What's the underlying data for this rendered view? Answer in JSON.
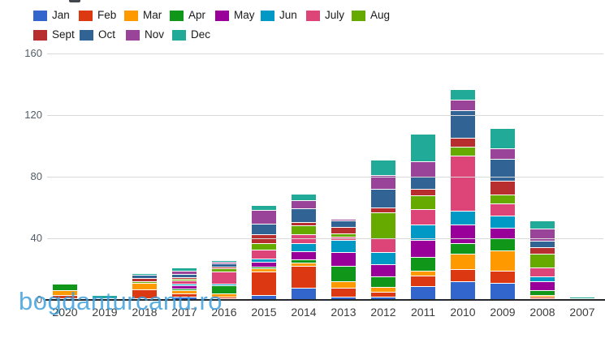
{
  "watermark": {
    "text": "bogdanturcanu.ro",
    "color": "#3fa0de"
  },
  "chart_data": {
    "type": "bar",
    "stacked": true,
    "title": "",
    "xlabel": "",
    "ylabel": "",
    "categories": [
      "2020",
      "2019",
      "2018",
      "2017",
      "2016",
      "2015",
      "2014",
      "2013",
      "2012",
      "2011",
      "2010",
      "2009",
      "2008",
      "2007"
    ],
    "series": [
      {
        "name": "Jan",
        "color": "#3366cc",
        "values": [
          1,
          0,
          1,
          2,
          1,
          3,
          8,
          2,
          2,
          9,
          12,
          11,
          1,
          0
        ]
      },
      {
        "name": "Feb",
        "color": "#dc3912",
        "values": [
          2,
          0,
          6,
          2,
          1,
          15,
          14,
          6,
          3,
          7,
          8,
          8,
          1,
          0
        ]
      },
      {
        "name": "Mar",
        "color": "#ff9900",
        "values": [
          3,
          0,
          4,
          2,
          2,
          2,
          2,
          4,
          3,
          3,
          10,
          13,
          1,
          0
        ]
      },
      {
        "name": "Apr",
        "color": "#109618",
        "values": [
          4,
          0,
          0,
          1,
          5,
          1,
          2,
          10,
          7,
          9,
          7,
          8,
          3,
          0
        ]
      },
      {
        "name": "May",
        "color": "#990099",
        "values": [
          0,
          0,
          0,
          2,
          0,
          3,
          5,
          9,
          8,
          11,
          12,
          7,
          6,
          0
        ]
      },
      {
        "name": "Jun",
        "color": "#0099c6",
        "values": [
          0,
          0,
          0,
          1,
          1,
          2,
          5,
          8,
          8,
          10,
          9,
          8,
          3,
          0
        ]
      },
      {
        "name": "July",
        "color": "#dd4477",
        "values": [
          0,
          1,
          0,
          2,
          8,
          6,
          6,
          2,
          9,
          10,
          36,
          8,
          6,
          0
        ]
      },
      {
        "name": "Aug",
        "color": "#66aa00",
        "values": [
          0,
          0,
          1,
          1,
          2,
          4,
          6,
          2,
          17,
          9,
          6,
          6,
          9,
          0
        ]
      },
      {
        "name": "Sept",
        "color": "#b82e2e",
        "values": [
          0,
          0,
          2,
          1,
          1,
          6,
          2,
          4,
          3,
          4,
          6,
          9,
          4,
          0
        ]
      },
      {
        "name": "Oct",
        "color": "#316395",
        "values": [
          0,
          0,
          2,
          2,
          2,
          7,
          9,
          4,
          12,
          8,
          18,
          14,
          4,
          0
        ]
      },
      {
        "name": "Nov",
        "color": "#994499",
        "values": [
          0,
          0,
          0,
          2,
          1,
          9,
          5,
          1,
          9,
          10,
          7,
          7,
          8,
          1
        ]
      },
      {
        "name": "Dec",
        "color": "#22aa99",
        "values": [
          0,
          2,
          1,
          2,
          1,
          3,
          4,
          0,
          10,
          18,
          7,
          13,
          5,
          1
        ]
      }
    ],
    "yticks": [
      0,
      40,
      80,
      120,
      160
    ],
    "ylim": [
      0,
      160
    ],
    "grid": true,
    "legend_position": "top",
    "legend_rows": [
      8,
      4
    ]
  }
}
